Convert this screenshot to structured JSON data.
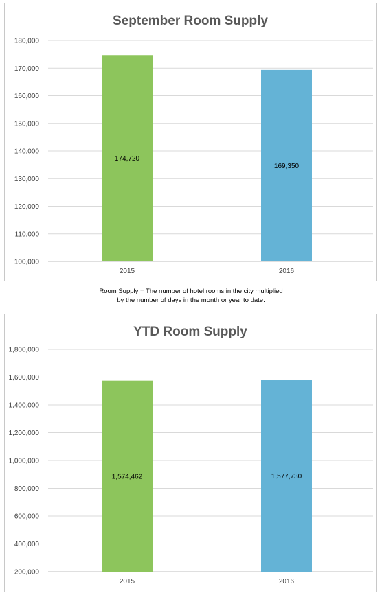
{
  "note": {
    "line1": "Room Supply = The number of hotel rooms in the city multiplied",
    "line2": "by the number of days in the month or year to date."
  },
  "chart_data": [
    {
      "type": "bar",
      "title": "September Room Supply",
      "categories": [
        "2015",
        "2016"
      ],
      "values": [
        174720,
        169350
      ],
      "value_labels": [
        "174,720",
        "169,350"
      ],
      "colors": [
        "#8dc55c",
        "#64b3d6"
      ],
      "ylim": [
        100000,
        180000
      ],
      "yticks": [
        100000,
        110000,
        120000,
        130000,
        140000,
        150000,
        160000,
        170000,
        180000
      ],
      "ytick_labels": [
        "100,000",
        "110,000",
        "120,000",
        "130,000",
        "140,000",
        "150,000",
        "160,000",
        "170,000",
        "180,000"
      ],
      "grid": true,
      "xlabel": "",
      "ylabel": ""
    },
    {
      "type": "bar",
      "title": "YTD Room Supply",
      "categories": [
        "2015",
        "2016"
      ],
      "values": [
        1574462,
        1577730
      ],
      "value_labels": [
        "1,574,462",
        "1,577,730"
      ],
      "colors": [
        "#8dc55c",
        "#64b3d6"
      ],
      "ylim": [
        200000,
        1800000
      ],
      "yticks": [
        200000,
        400000,
        600000,
        800000,
        1000000,
        1200000,
        1400000,
        1600000,
        1800000
      ],
      "ytick_labels": [
        "200,000",
        "400,000",
        "600,000",
        "800,000",
        "1,000,000",
        "1,200,000",
        "1,400,000",
        "1,600,000",
        "1,800,000"
      ],
      "grid": true,
      "xlabel": "",
      "ylabel": ""
    }
  ]
}
